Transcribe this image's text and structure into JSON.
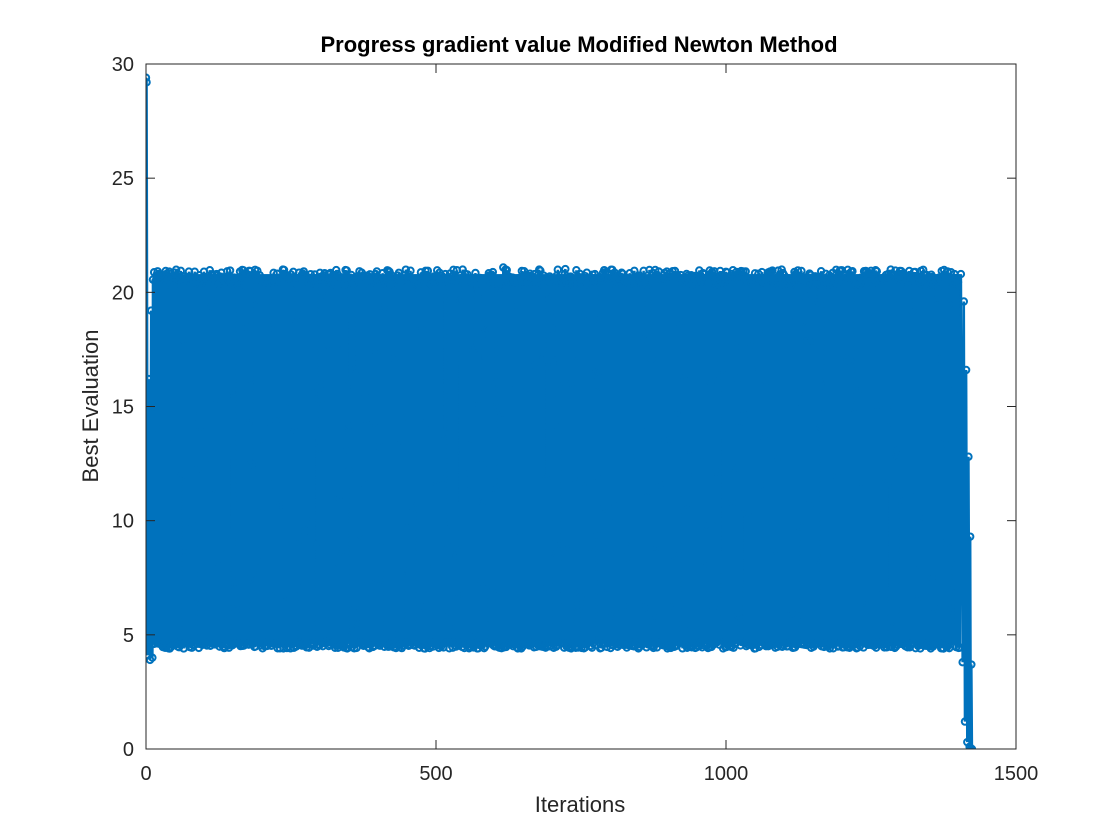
{
  "chart_data": {
    "type": "line",
    "title": "Progress gradient value Modified Newton Method",
    "xlabel": "Iterations",
    "ylabel": "Best Evaluation",
    "xlim": [
      0,
      1500
    ],
    "ylim": [
      0,
      30
    ],
    "xticks": [
      0,
      500,
      1000,
      1500
    ],
    "yticks": [
      0,
      5,
      10,
      15,
      20,
      25,
      30
    ],
    "grid": false,
    "box": true,
    "marker": "circle",
    "color": "#0072BD",
    "series": [
      {
        "description_points": {
          "start": [
            [
              0,
              29.4
            ],
            [
              1,
              29.2
            ],
            [
              3,
              4.1
            ],
            [
              5,
              16.2
            ],
            [
              7,
              3.9
            ],
            [
              9,
              19.2
            ],
            [
              11,
              4.0
            ],
            [
              13,
              15.0
            ]
          ],
          "oscillation_range": [
            4.4,
            21.1
          ],
          "oscillation_x_range": [
            10,
            1410
          ],
          "tail": [
            [
              1405,
              20.8
            ],
            [
              1408,
              3.8
            ],
            [
              1410,
              19.6
            ],
            [
              1412,
              1.2
            ],
            [
              1414,
              16.6
            ],
            [
              1416,
              0.3
            ],
            [
              1418,
              12.8
            ],
            [
              1420,
              0.1
            ],
            [
              1421,
              9.3
            ],
            [
              1422,
              0.0
            ],
            [
              1423,
              3.7
            ],
            [
              1424,
              0.0
            ]
          ]
        }
      }
    ]
  }
}
